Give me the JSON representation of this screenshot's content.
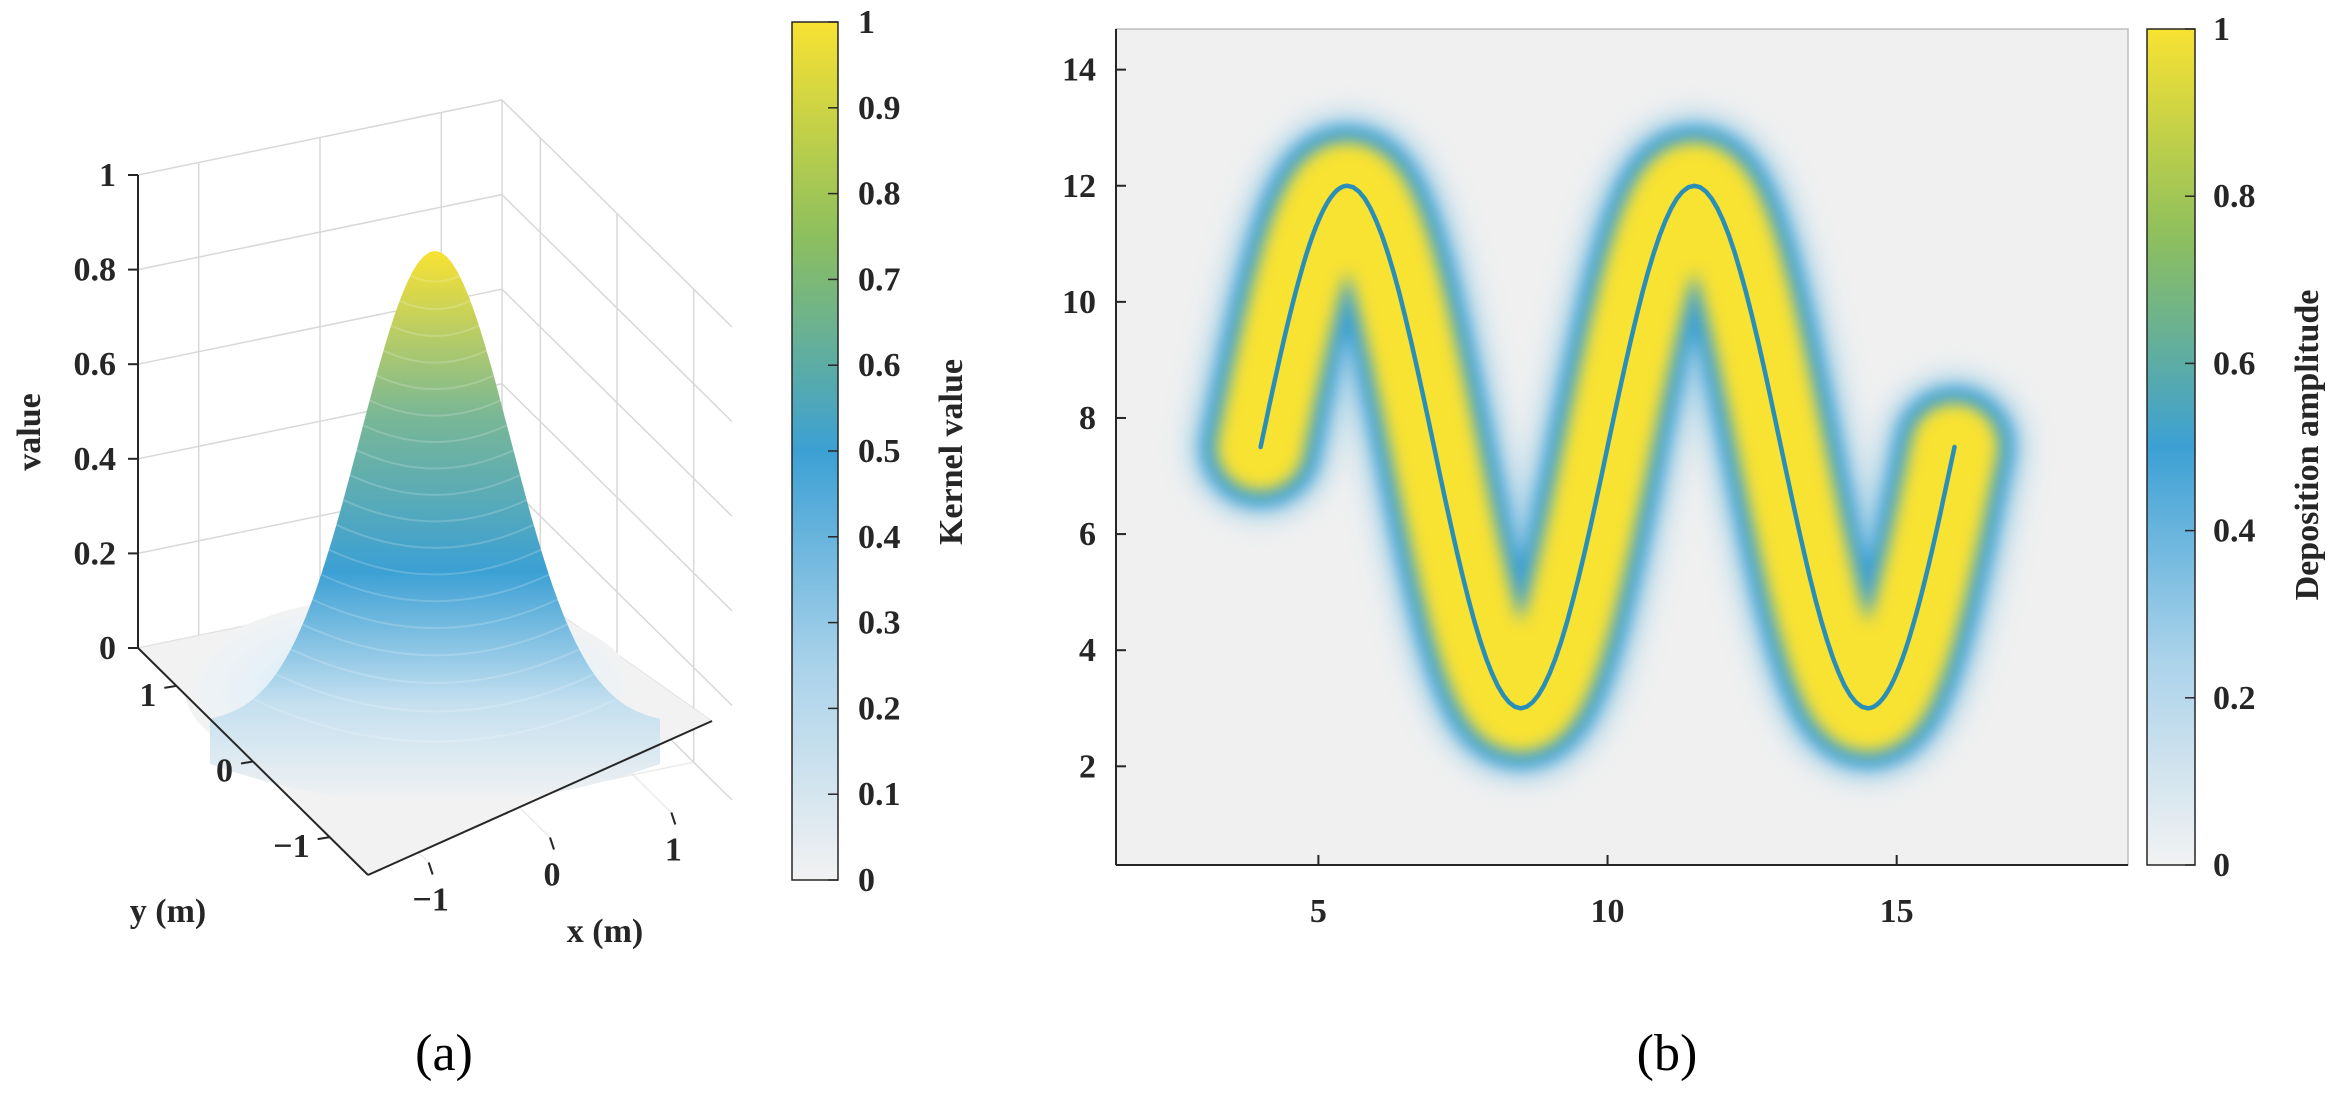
{
  "colors": {
    "yellow": "#F8E232",
    "blue": "#3CA0D4",
    "white": "#F2F2F2",
    "path": "#2A8FB8",
    "axis": "#262626",
    "grid": "#D8D8D8",
    "plot_bg": "#F0F0F0"
  },
  "chart_data": [
    {
      "panel": "(a)",
      "type": "surface3d",
      "description_function": "value = exp(-(x^2+y^2)/(2*0.5^2))",
      "kernel_sigma": 0.5,
      "zlabel": "value",
      "xlabel": "x (m)",
      "ylabel": "y (m)",
      "z_ticks": [
        "0",
        "0.2",
        "0.4",
        "0.6",
        "0.8",
        "1"
      ],
      "x_ticks": [
        "−1",
        "0",
        "1"
      ],
      "y_ticks": [
        "−1",
        "0",
        "1"
      ],
      "xlim": [
        -1.5,
        1.5
      ],
      "ylim": [
        -1.5,
        1.5
      ],
      "zlim": [
        0,
        1
      ],
      "colorbar": {
        "label": "Kernel value",
        "ticks": [
          "0",
          "0.1",
          "0.2",
          "0.3",
          "0.4",
          "0.5",
          "0.6",
          "0.7",
          "0.8",
          "0.9",
          "1"
        ],
        "range": [
          0,
          1
        ]
      },
      "caption": "(a)"
    },
    {
      "panel": "(b)",
      "type": "heatmap",
      "path_function": "y = 7.5 + 4.5*sin(pi*(x-4)/3 ... ) sinusoidal path",
      "path_x": [
        4,
        5.5,
        8.5,
        11.5,
        14.5,
        16
      ],
      "path_y": [
        7.5,
        12,
        3,
        12,
        3,
        7.5
      ],
      "xlim": [
        1.5,
        19
      ],
      "ylim": [
        0.3,
        14.7
      ],
      "x_ticks": [
        "5",
        "10",
        "15"
      ],
      "y_ticks": [
        "2",
        "4",
        "6",
        "8",
        "10",
        "12",
        "14"
      ],
      "colorbar": {
        "label": "Deposition amplitude",
        "ticks": [
          "0",
          "0.2",
          "0.4",
          "0.6",
          "0.8",
          "1"
        ],
        "range": [
          0,
          1
        ]
      },
      "caption": "(b)"
    }
  ]
}
